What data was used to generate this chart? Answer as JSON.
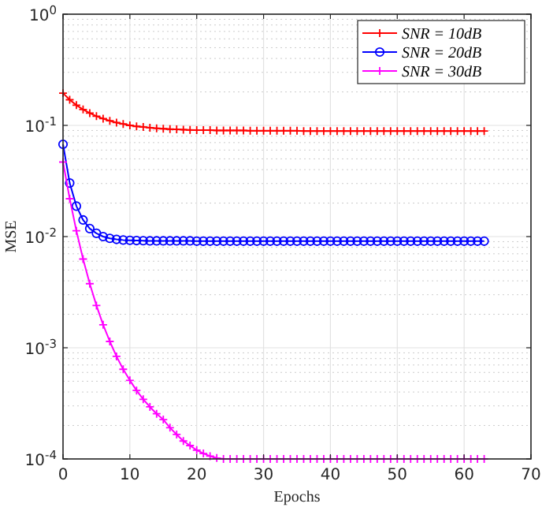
{
  "chart_data": {
    "type": "line",
    "xlabel": "Epochs",
    "ylabel": "MSE",
    "log": "y",
    "grid": true,
    "legend": "top right",
    "line_style": "solid",
    "xlim": [
      0,
      70
    ],
    "xticks": [
      0,
      10,
      20,
      30,
      40,
      50,
      60,
      70
    ],
    "ylim": [
      0.0001,
      1
    ],
    "yticks": [
      {
        "value": 0.0001,
        "label": "10$^{-4}$"
      },
      {
        "value": 0.001,
        "label": "10$^{-3}$"
      },
      {
        "value": 0.01,
        "label": "10$^{-2}$"
      },
      {
        "value": 0.1,
        "label": "10$^{-1}$"
      },
      {
        "value": 1,
        "label": "10$^{0}$"
      }
    ],
    "x": [
      0,
      1,
      2,
      3,
      4,
      5,
      6,
      7,
      8,
      9,
      10,
      11,
      12,
      13,
      14,
      15,
      16,
      17,
      18,
      19,
      20,
      21,
      22,
      23,
      24,
      25,
      26,
      27,
      28,
      29,
      30,
      31,
      32,
      33,
      34,
      35,
      36,
      37,
      38,
      39,
      40,
      41,
      42,
      43,
      44,
      45,
      46,
      47,
      48,
      49,
      50,
      51,
      52,
      53,
      54,
      55,
      56,
      57,
      58,
      59,
      60,
      61,
      62,
      63
    ],
    "series": [
      {
        "name": "SNR = 10dB",
        "color": "#ff0000",
        "marker": "cross",
        "values": [
          0.195,
          0.17,
          0.152,
          0.139,
          0.129,
          0.121,
          0.115,
          0.11,
          0.106,
          0.103,
          0.1,
          0.098,
          0.0966,
          0.0953,
          0.0942,
          0.0933,
          0.0925,
          0.092,
          0.0915,
          0.091,
          0.0905,
          0.0905,
          0.0905,
          0.09,
          0.09,
          0.09,
          0.09,
          0.09,
          0.0895,
          0.0895,
          0.0895,
          0.0895,
          0.0895,
          0.0895,
          0.0895,
          0.0895,
          0.089,
          0.089,
          0.089,
          0.089,
          0.089,
          0.089,
          0.089,
          0.089,
          0.089,
          0.089,
          0.089,
          0.089,
          0.089,
          0.089,
          0.089,
          0.089,
          0.089,
          0.089,
          0.089,
          0.089,
          0.089,
          0.089,
          0.089,
          0.089,
          0.089,
          0.089,
          0.089,
          0.089
        ]
      },
      {
        "name": "SNR = 20dB",
        "color": "#0000ff",
        "marker": "circle",
        "values": [
          0.0676,
          0.0303,
          0.0188,
          0.0141,
          0.0118,
          0.0107,
          0.01,
          0.00964,
          0.00944,
          0.00931,
          0.00925,
          0.00921,
          0.00918,
          0.00915,
          0.00915,
          0.00915,
          0.00915,
          0.00915,
          0.00915,
          0.00915,
          0.0091,
          0.0091,
          0.0091,
          0.0091,
          0.0091,
          0.0091,
          0.0091,
          0.0091,
          0.0091,
          0.0091,
          0.0091,
          0.0091,
          0.0091,
          0.0091,
          0.0091,
          0.0091,
          0.0091,
          0.0091,
          0.0091,
          0.0091,
          0.0091,
          0.0091,
          0.0091,
          0.0091,
          0.0091,
          0.0091,
          0.0091,
          0.0091,
          0.0091,
          0.0091,
          0.0091,
          0.0091,
          0.0091,
          0.0091,
          0.0091,
          0.0091,
          0.0091,
          0.0091,
          0.0091,
          0.0091,
          0.0091,
          0.0091,
          0.0091,
          0.0091
        ]
      },
      {
        "name": "SNR = 30dB",
        "color": "#ff00ff",
        "marker": "cross",
        "values": [
          0.0468,
          0.0219,
          0.01127,
          0.00628,
          0.00377,
          0.0024,
          0.00161,
          0.00114,
          0.000837,
          0.000641,
          0.000509,
          0.000413,
          0.000344,
          0.000294,
          0.000255,
          0.000226,
          0.000191,
          0.000166,
          0.000145,
          0.000132,
          0.00012,
          0.000112,
          0.000106,
          0.000102,
          0.0001,
          0.0001,
          0.0001,
          0.0001,
          0.0001,
          0.0001,
          0.0001,
          0.0001,
          0.0001,
          0.0001,
          0.0001,
          0.0001,
          0.0001,
          0.0001,
          0.0001,
          0.0001,
          0.0001,
          0.0001,
          0.0001,
          0.0001,
          0.0001,
          0.0001,
          0.0001,
          0.0001,
          0.0001,
          0.0001,
          0.0001,
          0.0001,
          0.0001,
          0.0001,
          0.0001,
          0.0001,
          0.0001,
          0.0001,
          0.0001,
          0.0001,
          0.0001,
          0.0001,
          0.0001,
          0.0001
        ]
      }
    ]
  }
}
